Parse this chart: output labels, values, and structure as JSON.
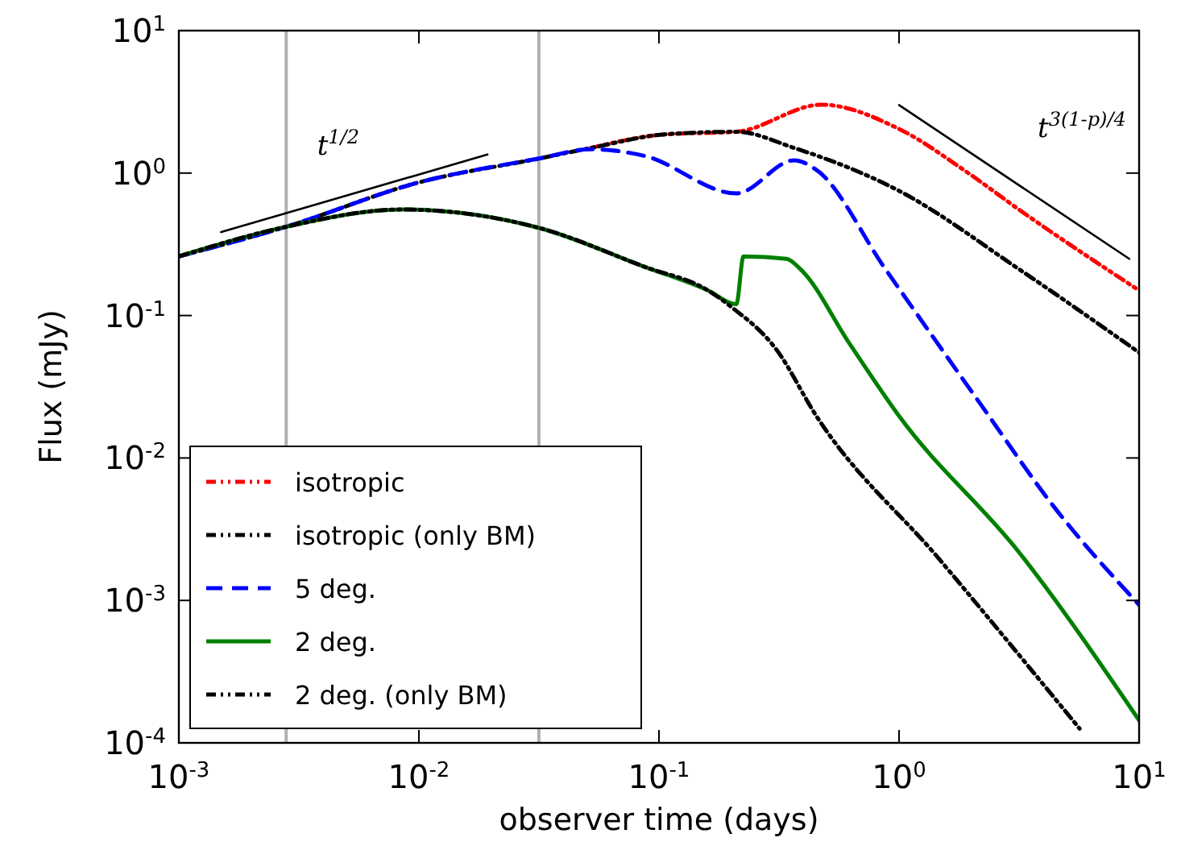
{
  "chart_data": {
    "type": "line",
    "xlabel": "observer time (days)",
    "ylabel": "Flux (mJy)",
    "log": "xy",
    "grid": false,
    "legend": "bottom left",
    "xlim": [
      0.001,
      10
    ],
    "ylim": [
      0.0001,
      10
    ],
    "xticks": [
      {
        "value": 0.001,
        "label": "10$^{-3}$"
      },
      {
        "value": 0.01,
        "label": "10$^{-2}$"
      },
      {
        "value": 0.1,
        "label": "10$^{-1}$"
      },
      {
        "value": 1,
        "label": "10$^{0}$"
      },
      {
        "value": 10,
        "label": "10$^{1}$"
      }
    ],
    "yticks": [
      {
        "value": 0.0001,
        "label": "10$^{-4}$"
      },
      {
        "value": 0.001,
        "label": "10$^{-3}$"
      },
      {
        "value": 0.01,
        "label": "10$^{-2}$"
      },
      {
        "value": 0.1,
        "label": "10$^{-1}$"
      },
      {
        "value": 1,
        "label": "10$^{0}$"
      },
      {
        "value": 10,
        "label": "10$^{1}$"
      }
    ],
    "ref_lines": [
      {
        "axis": "x",
        "value": 0.0028,
        "color": "#b0b0b0"
      },
      {
        "axis": "x",
        "value": 0.0316,
        "color": "#b0b0b0"
      }
    ],
    "annotations": [
      "t$^{1/2}$",
      "t$^{3(1-p)/4}$"
    ],
    "series": [
      {
        "name": "isotropic",
        "color": "#ff0000",
        "line_style": "dotted",
        "x": [
          0.052,
          0.106,
          0.21,
          0.475,
          1,
          1.91,
          3.18,
          10
        ],
        "values": [
          1.5,
          1.87,
          1.95,
          3.02,
          2.04,
          1.02,
          0.55,
          0.15
        ]
      },
      {
        "name": "isotropic (only BM)",
        "color": "#000000",
        "line_style": "dotted",
        "x": [
          0.001,
          0.0028,
          0.01,
          0.032,
          0.052,
          0.106,
          0.21,
          0.366,
          1,
          3.18,
          10
        ],
        "values": [
          0.26,
          0.42,
          0.86,
          1.27,
          1.5,
          1.87,
          1.95,
          1.5,
          0.75,
          0.21,
          0.055
        ]
      },
      {
        "name": "5 deg.",
        "color": "#0000ff",
        "line_style": "dashed",
        "x": [
          0.001,
          0.0028,
          0.01,
          0.032,
          0.052,
          0.087,
          0.21,
          0.366,
          0.45,
          0.88,
          2.24,
          4.35,
          10
        ],
        "values": [
          0.26,
          0.42,
          0.86,
          1.27,
          1.47,
          1.32,
          0.72,
          1.23,
          1.06,
          0.21,
          0.0225,
          0.0047,
          0.00093
        ]
      },
      {
        "name": "2 deg.",
        "color": "#008000",
        "line_style": "solid",
        "x": [
          0.001,
          0.0028,
          0.0085,
          0.032,
          0.087,
          0.16,
          0.21,
          0.225,
          0.34,
          0.39,
          0.62,
          1,
          3.18,
          10
        ],
        "values": [
          0.26,
          0.42,
          0.555,
          0.41,
          0.22,
          0.15,
          0.12,
          0.26,
          0.25,
          0.21,
          0.064,
          0.0197,
          0.00215,
          0.000144
        ]
      },
      {
        "name": "2 deg. (only BM)",
        "color": "#000000",
        "line_style": "dotted",
        "x": [
          0.001,
          0.0028,
          0.0085,
          0.032,
          0.087,
          0.16,
          0.2,
          0.31,
          0.45,
          1.47,
          5.65
        ],
        "values": [
          0.26,
          0.42,
          0.555,
          0.41,
          0.22,
          0.15,
          0.115,
          0.057,
          0.02,
          0.00195,
          0.000126
        ]
      },
      {
        "color": "#000000",
        "line_style": "solid",
        "x": [
          0.0015,
          0.0193
        ],
        "values": [
          0.385,
          1.35
        ]
      },
      {
        "color": "#000000",
        "line_style": "solid",
        "x": [
          1,
          9.1
        ],
        "values": [
          3.0,
          0.25
        ]
      }
    ]
  }
}
